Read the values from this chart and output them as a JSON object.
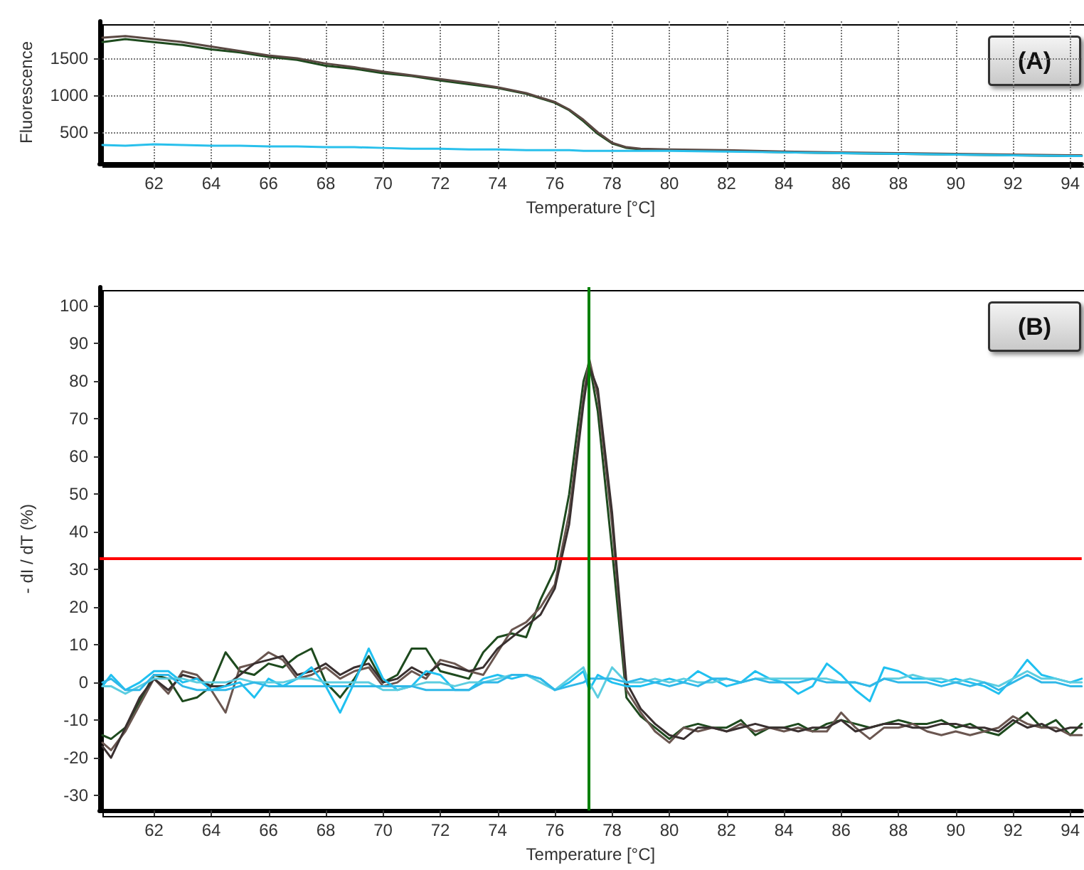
{
  "chart_data": [
    {
      "type": "line",
      "xlabel": "Temperature [°C]",
      "ylabel": "Fluorescence",
      "annotations": [
        "(A)"
      ],
      "xlim": [
        60.1,
        94.4
      ],
      "ylim": [
        80,
        2000
      ],
      "xticks": [
        62,
        64,
        66,
        68,
        70,
        72,
        74,
        76,
        78,
        80,
        82,
        84,
        86,
        88,
        90,
        92,
        94
      ],
      "yticks": [
        500,
        1000,
        1500
      ],
      "grid": true,
      "marker": "none",
      "line_style": "solid",
      "x": [
        60.2,
        61,
        62,
        63,
        64,
        65,
        66,
        67,
        68,
        69,
        70,
        71,
        72,
        73,
        74,
        75,
        76,
        76.5,
        77,
        77.5,
        78,
        78.5,
        79,
        80,
        82,
        84,
        86,
        88,
        90,
        92,
        94,
        94.4
      ],
      "series": [
        {
          "color": "#1e4a1e",
          "values": [
            1720,
            1760,
            1720,
            1680,
            1620,
            1580,
            1520,
            1480,
            1400,
            1360,
            1300,
            1260,
            1200,
            1150,
            1100,
            1020,
            900,
            800,
            650,
            480,
            350,
            290,
            270,
            260,
            250,
            230,
            220,
            210,
            200,
            190,
            180,
            180
          ]
        },
        {
          "color": "#5a4842",
          "values": [
            1780,
            1800,
            1760,
            1720,
            1660,
            1600,
            1540,
            1500,
            1430,
            1380,
            1320,
            1270,
            1220,
            1170,
            1110,
            1030,
            910,
            810,
            670,
            500,
            360,
            300,
            280,
            270,
            260,
            240,
            230,
            220,
            210,
            200,
            190,
            190
          ]
        },
        {
          "color": "#29c0ec",
          "values": [
            330,
            320,
            340,
            330,
            320,
            320,
            310,
            310,
            300,
            300,
            290,
            280,
            280,
            270,
            270,
            260,
            260,
            260,
            250,
            250,
            250,
            250,
            250,
            250,
            240,
            230,
            220,
            210,
            200,
            190,
            180,
            180
          ]
        }
      ]
    },
    {
      "type": "line",
      "xlabel": "Temperature [°C]",
      "ylabel": "- dI / dT (%)",
      "annotations": [
        "(B)"
      ],
      "xlim": [
        60.1,
        94.4
      ],
      "ylim": [
        -34,
        105
      ],
      "xticks": [
        62,
        64,
        66,
        68,
        70,
        72,
        74,
        76,
        78,
        80,
        82,
        84,
        86,
        88,
        90,
        92,
        94
      ],
      "yticks": [
        -30,
        -20,
        -10,
        0,
        10,
        20,
        30,
        40,
        50,
        60,
        70,
        80,
        90,
        100
      ],
      "grid": false,
      "marker": "none",
      "line_style": "solid",
      "ref_lines": [
        {
          "axis": "y",
          "value": 33,
          "color": "#ff0000"
        },
        {
          "axis": "x",
          "value": 77.2,
          "color": "#008000"
        }
      ],
      "x": [
        60.2,
        60.5,
        61,
        61.5,
        62,
        62.5,
        63,
        63.5,
        64,
        64.5,
        65,
        65.5,
        66,
        66.5,
        67,
        67.5,
        68,
        68.5,
        69,
        69.5,
        70,
        70.5,
        71,
        71.5,
        72,
        72.5,
        73,
        73.5,
        74,
        74.5,
        75,
        75.5,
        76,
        76.5,
        77,
        77.2,
        77.5,
        78,
        78.5,
        79,
        79.5,
        80,
        80.5,
        81,
        81.5,
        82,
        82.5,
        83,
        83.5,
        84,
        84.5,
        85,
        85.5,
        86,
        86.5,
        87,
        87.5,
        88,
        88.5,
        89,
        89.5,
        90,
        90.5,
        91,
        91.5,
        92,
        92.5,
        93,
        93.5,
        94,
        94.4
      ],
      "series": [
        {
          "color": "#1e4a1e",
          "values": [
            -14,
            -15,
            -12,
            -5,
            2,
            1,
            -5,
            -4,
            -1,
            8,
            3,
            2,
            5,
            4,
            7,
            9,
            0,
            -4,
            1,
            7,
            0,
            2,
            9,
            9,
            3,
            2,
            1,
            8,
            12,
            13,
            12,
            22,
            30,
            50,
            80,
            85,
            72,
            35,
            -4,
            -9,
            -12,
            -15,
            -12,
            -11,
            -12,
            -12,
            -10,
            -14,
            -12,
            -12,
            -11,
            -13,
            -11,
            -10,
            -11,
            -12,
            -11,
            -10,
            -11,
            -11,
            -10,
            -12,
            -11,
            -13,
            -14,
            -11,
            -8,
            -12,
            -10,
            -14,
            -11
          ]
        },
        {
          "color": "#6a5650",
          "values": [
            -16,
            -18,
            -13,
            -6,
            1,
            -3,
            3,
            2,
            -2,
            -8,
            4,
            5,
            8,
            6,
            1,
            2,
            4,
            1,
            3,
            4,
            -1,
            0,
            3,
            1,
            6,
            5,
            3,
            2,
            8,
            14,
            16,
            20,
            26,
            45,
            76,
            86,
            76,
            42,
            -2,
            -8,
            -13,
            -16,
            -12,
            -13,
            -12,
            -13,
            -11,
            -13,
            -12,
            -13,
            -12,
            -13,
            -13,
            -8,
            -12,
            -15,
            -12,
            -12,
            -11,
            -13,
            -14,
            -13,
            -14,
            -13,
            -12,
            -9,
            -11,
            -12,
            -12,
            -14,
            -14
          ]
        },
        {
          "color": "#3a3030",
          "values": [
            -17,
            -20,
            -12,
            -4,
            1,
            -2,
            2,
            1,
            -1,
            -1,
            2,
            5,
            6,
            7,
            2,
            3,
            5,
            2,
            4,
            5,
            0,
            1,
            4,
            2,
            5,
            4,
            3,
            4,
            9,
            12,
            15,
            18,
            25,
            42,
            74,
            84,
            78,
            45,
            0,
            -7,
            -11,
            -14,
            -15,
            -12,
            -12,
            -13,
            -12,
            -11,
            -12,
            -12,
            -13,
            -12,
            -12,
            -10,
            -13,
            -12,
            -11,
            -11,
            -12,
            -12,
            -11,
            -11,
            -12,
            -12,
            -13,
            -10,
            -12,
            -11,
            -13,
            -12,
            -12
          ]
        },
        {
          "color": "#20c0f0",
          "values": [
            -1,
            2,
            -2,
            0,
            3,
            3,
            0,
            1,
            -2,
            -1,
            0,
            -4,
            1,
            -1,
            1,
            4,
            -1,
            -8,
            0,
            9,
            1,
            -2,
            -1,
            3,
            2,
            -2,
            -2,
            1,
            2,
            1,
            2,
            1,
            -2,
            0,
            3,
            -2,
            2,
            0,
            -1,
            -1,
            0,
            1,
            0,
            3,
            1,
            -1,
            0,
            3,
            1,
            0,
            -3,
            -1,
            5,
            2,
            -2,
            -5,
            4,
            3,
            1,
            1,
            0,
            1,
            0,
            -1,
            -3,
            1,
            6,
            2,
            1,
            0,
            1
          ]
        },
        {
          "color": "#5ccde0",
          "values": [
            -1,
            -1,
            -3,
            -1,
            1,
            1,
            1,
            0,
            0,
            0,
            1,
            0,
            0,
            0,
            1,
            1,
            0,
            0,
            0,
            0,
            -2,
            -2,
            -1,
            0,
            0,
            -1,
            0,
            0,
            1,
            2,
            2,
            0,
            -2,
            1,
            4,
            0,
            -4,
            4,
            0,
            0,
            1,
            0,
            1,
            0,
            0,
            1,
            0,
            1,
            1,
            1,
            1,
            1,
            1,
            0,
            0,
            -1,
            1,
            1,
            2,
            1,
            1,
            0,
            1,
            0,
            -1,
            1,
            3,
            1,
            1,
            0,
            0
          ]
        },
        {
          "color": "#30b8e8",
          "values": [
            0,
            1,
            -2,
            -2,
            2,
            2,
            -1,
            -2,
            -2,
            -2,
            -1,
            0,
            -1,
            -1,
            -1,
            -1,
            -1,
            -1,
            -1,
            -1,
            -1,
            -1,
            -1,
            -2,
            -2,
            -2,
            -2,
            0,
            0,
            2,
            2,
            1,
            -2,
            -1,
            0,
            1,
            1,
            1,
            0,
            1,
            0,
            -1,
            0,
            -1,
            1,
            1,
            0,
            1,
            0,
            0,
            0,
            1,
            0,
            0,
            0,
            -1,
            1,
            0,
            0,
            0,
            -1,
            0,
            -1,
            0,
            -2,
            0,
            2,
            0,
            0,
            -1,
            -1
          ]
        }
      ]
    }
  ]
}
